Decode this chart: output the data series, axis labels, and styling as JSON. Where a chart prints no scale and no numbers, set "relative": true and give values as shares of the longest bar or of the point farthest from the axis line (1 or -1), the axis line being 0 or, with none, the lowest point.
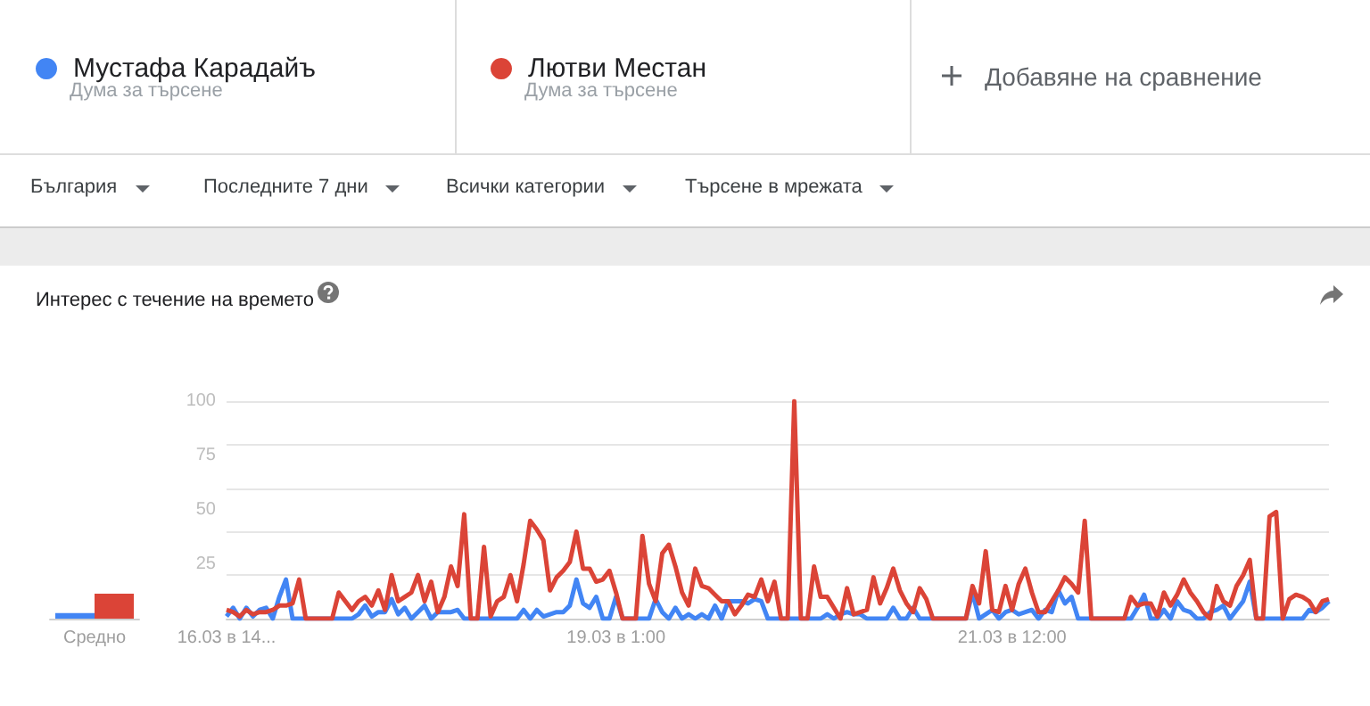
{
  "chart_data": [
    {
      "type": "bar",
      "relative": true,
      "categories": [
        "Средно"
      ],
      "series": [
        {
          "color": "#4285f4",
          "values": [
            0.22
          ]
        },
        {
          "color": "#db4437",
          "values": [
            1
          ]
        }
      ]
    },
    {
      "type": "line",
      "title": "Интерес с течение на времето",
      "legend": "top left",
      "grid": "y",
      "marker": "none",
      "annotations": [
        "Дума за търсене",
        "Дума за търсене",
        "Добавяне на сравнение",
        "България",
        "Последните 7 дни",
        "Всички категории",
        "Търсене в мрежата"
      ],
      "ylim": [
        0,
        100
      ],
      "yticks": [
        {
          "value": 0,
          "label": null
        },
        25,
        50,
        75,
        100
      ],
      "categories": [
        "16.03 в 14...",
        null,
        null,
        null,
        null,
        null,
        null,
        null,
        null,
        null,
        null,
        null,
        null,
        null,
        null,
        null,
        null,
        null,
        null,
        null,
        null,
        null,
        null,
        null,
        null,
        null,
        null,
        null,
        null,
        null,
        null,
        null,
        null,
        null,
        null,
        null,
        null,
        null,
        null,
        null,
        null,
        null,
        null,
        null,
        null,
        null,
        null,
        null,
        null,
        null,
        null,
        null,
        null,
        null,
        null,
        null,
        null,
        null,
        null,
        "19.03 в 1:00",
        null,
        null,
        null,
        null,
        null,
        null,
        null,
        null,
        null,
        null,
        null,
        null,
        null,
        null,
        null,
        null,
        null,
        null,
        null,
        null,
        null,
        null,
        null,
        null,
        null,
        null,
        null,
        null,
        null,
        null,
        null,
        null,
        null,
        null,
        null,
        null,
        null,
        null,
        null,
        null,
        null,
        null,
        null,
        null,
        null,
        null,
        null,
        null,
        null,
        null,
        null,
        null,
        null,
        null,
        null,
        null,
        null,
        null,
        null,
        "21.03 в 12:00",
        null,
        null,
        null,
        null,
        null,
        null,
        null,
        null,
        null,
        null,
        null,
        null,
        null,
        null,
        null,
        null,
        null,
        null,
        null,
        null,
        null,
        null,
        null,
        null,
        null,
        null,
        null,
        null,
        null,
        null,
        null,
        null,
        null,
        null,
        null,
        null,
        null,
        null,
        null,
        null,
        null,
        null,
        null,
        null,
        null,
        null,
        null,
        null
      ],
      "series": [
        {
          "name": "Мустафа Карадайъ",
          "color": "#4285f4",
          "values": [
            1,
            5,
            0,
            5,
            1,
            4,
            5,
            0,
            10,
            18,
            0,
            0,
            0,
            0,
            0,
            0,
            0,
            0,
            0,
            0,
            2,
            6,
            1,
            3,
            3,
            9,
            2,
            5,
            0,
            3,
            6,
            0,
            3,
            3,
            3,
            4,
            0,
            0,
            0,
            0,
            0,
            0,
            0,
            0,
            0,
            4,
            0,
            4,
            1,
            2,
            3,
            3,
            6,
            18,
            7,
            5,
            10,
            0,
            0,
            10,
            0,
            0,
            0,
            0,
            0,
            9,
            3,
            0,
            5,
            0,
            2,
            0,
            2,
            0,
            6,
            0,
            8,
            8,
            8,
            7,
            9,
            8,
            0,
            0,
            0,
            0,
            0,
            0,
            0,
            0,
            0,
            2,
            0,
            2,
            3,
            2,
            2,
            0,
            0,
            0,
            0,
            5,
            0,
            0,
            5,
            0,
            0,
            0,
            0,
            0,
            0,
            0,
            0,
            12,
            0,
            2,
            4,
            0,
            3,
            4,
            2,
            3,
            4,
            0,
            4,
            3,
            13,
            7,
            10,
            0,
            0,
            0,
            0,
            0,
            0,
            0,
            0,
            0,
            5,
            11,
            0,
            0,
            4,
            0,
            8,
            4,
            3,
            0,
            0,
            3,
            4,
            6,
            0,
            4,
            8,
            17,
            0,
            0,
            0,
            0,
            0,
            0,
            0,
            0,
            4,
            3,
            5,
            8
          ]
        },
        {
          "name": "Лютви Местан",
          "color": "#db4437",
          "values": [
            4,
            3,
            1,
            4,
            2,
            3,
            3,
            4,
            6,
            6,
            7,
            18,
            0,
            0,
            0,
            0,
            0,
            12,
            8,
            4,
            8,
            10,
            6,
            13,
            4,
            20,
            8,
            10,
            12,
            20,
            8,
            17,
            3,
            10,
            24,
            15,
            48,
            0,
            0,
            33,
            1,
            8,
            10,
            20,
            8,
            25,
            45,
            41,
            36,
            13,
            19,
            22,
            26,
            40,
            23,
            23,
            17,
            18,
            22,
            12,
            0,
            0,
            0,
            38,
            16,
            8,
            30,
            34,
            24,
            12,
            6,
            23,
            15,
            14,
            11,
            8,
            8,
            2,
            6,
            11,
            10,
            18,
            8,
            17,
            0,
            0,
            100,
            0,
            0,
            24,
            10,
            10,
            5,
            0,
            14,
            2,
            3,
            4,
            19,
            7,
            14,
            23,
            13,
            7,
            3,
            14,
            9,
            0,
            0,
            0,
            0,
            0,
            0,
            15,
            7,
            31,
            4,
            3,
            15,
            4,
            16,
            23,
            12,
            3,
            3,
            8,
            13,
            19,
            16,
            12,
            45,
            0,
            0,
            0,
            0,
            0,
            0,
            10,
            6,
            7,
            7,
            1,
            12,
            6,
            11,
            18,
            12,
            8,
            3,
            0,
            15,
            8,
            6,
            15,
            20,
            27,
            0,
            0,
            47,
            49,
            0,
            9,
            11,
            10,
            8,
            3,
            8,
            9
          ]
        }
      ]
    }
  ]
}
